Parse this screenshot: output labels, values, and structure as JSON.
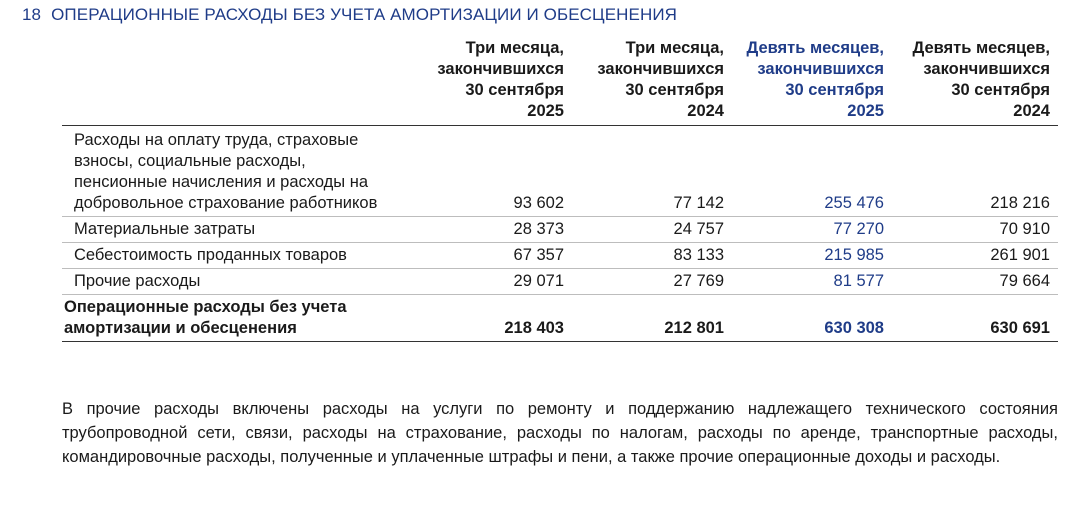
{
  "section": {
    "number": "18",
    "title": "ОПЕРАЦИОННЫЕ РАСХОДЫ БЕЗ УЧЕТА АМОРТИЗАЦИИ И ОБЕСЦЕНЕНИЯ"
  },
  "colors": {
    "accent_blue": "#1f3c88",
    "text": "#1a1a1a"
  },
  "table": {
    "columns": [
      {
        "line1": "Три месяца,",
        "line2": "закончившихся",
        "line3": "30 сентября",
        "year": "2025"
      },
      {
        "line1": "Три месяца,",
        "line2": "закончившихся",
        "line3": "30 сентября",
        "year": "2024"
      },
      {
        "line1": "Девять месяцев,",
        "line2": "закончившихся",
        "line3": "30 сентября",
        "year": "2025"
      },
      {
        "line1": "Девять месяцев,",
        "line2": "закончившихся",
        "line3": "30 сентября",
        "year": "2024"
      }
    ],
    "rows": [
      {
        "label": "Расходы на оплату труда, страховые взносы, социальные расходы, пенсионные начисления и расходы на добровольное страхование работников",
        "values": [
          "93 602",
          "77 142",
          "255 476",
          "218 216"
        ]
      },
      {
        "label": "Материальные затраты",
        "values": [
          "28 373",
          "24 757",
          "77 270",
          "70 910"
        ]
      },
      {
        "label": "Себестоимость проданных товаров",
        "values": [
          "67 357",
          "83 133",
          "215 985",
          "261 901"
        ]
      },
      {
        "label": "Прочие расходы",
        "values": [
          "29 071",
          "27 769",
          "81 577",
          "79 664"
        ]
      }
    ],
    "total": {
      "label": "Операционные расходы без учета амортизации и обесценения",
      "values": [
        "218 403",
        "212 801",
        "630 308",
        "630 691"
      ]
    }
  },
  "note": "В прочие расходы включены расходы на услуги по ремонту и поддержанию надлежащего технического состояния трубопроводной сети, связи, расходы на страхование, расходы по налогам, расходы по аренде, транспортные расходы, командировочные расходы, полученные и уплаченные штрафы и пени, а также прочие операционные доходы и расходы."
}
